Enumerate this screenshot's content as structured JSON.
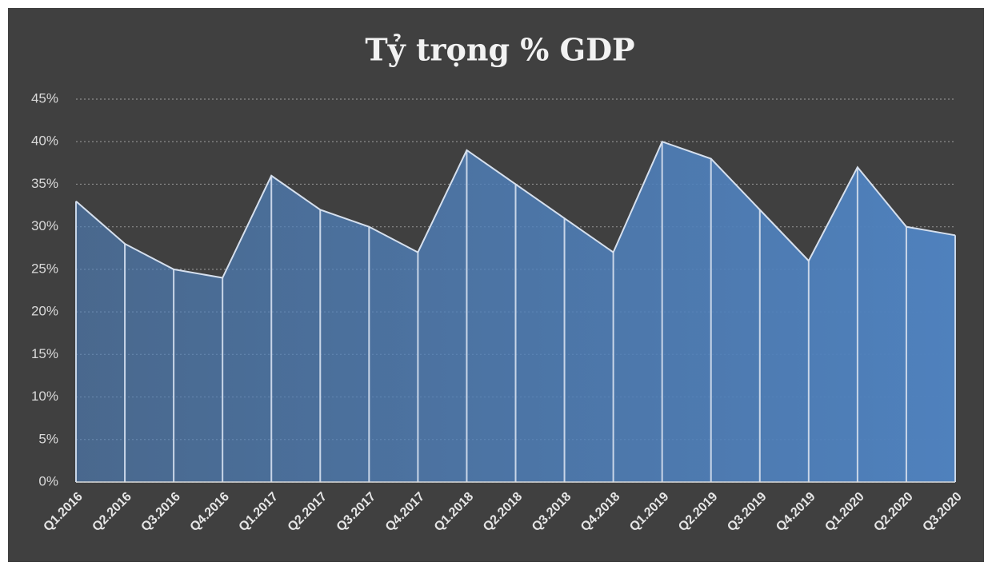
{
  "chart_data": {
    "type": "area",
    "title": "Tỷ trọng % GDP",
    "categories": [
      "Q1.2016",
      "Q2.2016",
      "Q3.2016",
      "Q4.2016",
      "Q1.2017",
      "Q2.2017",
      "Q3.2017",
      "Q4.2017",
      "Q1.2018",
      "Q2.2018",
      "Q3.2018",
      "Q4.2018",
      "Q1.2019",
      "Q2.2019",
      "Q3.2019",
      "Q4.2019",
      "Q1.2020",
      "Q2.2020",
      "Q3.2020"
    ],
    "values": [
      33,
      28,
      25,
      24,
      36,
      32,
      30,
      27,
      39,
      35,
      31,
      27,
      40,
      38,
      32,
      26,
      37,
      30,
      29
    ],
    "color": "#4f81bd",
    "ylim": [
      0,
      45
    ],
    "yticks": [
      {
        "value": 0,
        "label": "0%"
      },
      {
        "value": 5,
        "label": "5%"
      },
      {
        "value": 10,
        "label": "10%"
      },
      {
        "value": 15,
        "label": "15%"
      },
      {
        "value": 20,
        "label": "20%"
      },
      {
        "value": 25,
        "label": "25%"
      },
      {
        "value": 30,
        "label": "30%"
      },
      {
        "value": 35,
        "label": "35%"
      },
      {
        "value": 40,
        "label": "40%"
      },
      {
        "value": 45,
        "label": "45%"
      }
    ],
    "grid": true
  }
}
